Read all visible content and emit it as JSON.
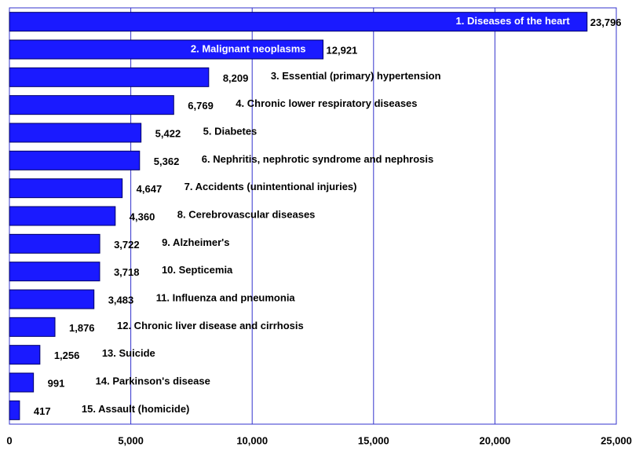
{
  "chart_data": {
    "type": "bar",
    "orientation": "horizontal",
    "color": "#1a1aff",
    "grid": true,
    "categories": [
      "1.  Diseases of the heart",
      "2.  Malignant neoplasms",
      "3.  Essential (primary) hypertension",
      "4.  Chronic lower respiratory diseases",
      "5.  Diabetes",
      "6.  Nephritis, nephrotic syndrome and nephrosis",
      "7.  Accidents (unintentional injuries)",
      "8.  Cerebrovascular diseases",
      "9.  Alzheimer's",
      "10.  Septicemia",
      "11.  Influenza and pneumonia",
      "12.  Chronic liver disease and cirrhosis",
      "13.  Suicide",
      "14.  Parkinson's disease",
      "15.  Assault (homicide)"
    ],
    "values": [
      23796,
      12921,
      8209,
      6769,
      5422,
      5362,
      4647,
      4360,
      3722,
      3718,
      3483,
      1876,
      1256,
      991,
      417
    ],
    "value_labels": [
      "23,796",
      "12,921",
      "8,209",
      "6,769",
      "5,422",
      "5,362",
      "4,647",
      "4,360",
      "3,722",
      "3,718",
      "3,483",
      "1,876",
      "1,256",
      "991",
      "417"
    ],
    "xlim": [
      0,
      25000
    ],
    "xticks": [
      0,
      {
        "value": 5000,
        "label": "5,000"
      },
      {
        "value": 10000,
        "label": "10,000"
      },
      {
        "value": 15000,
        "label": "15,000"
      },
      {
        "value": 20000,
        "label": "20,000"
      },
      {
        "value": 25000,
        "label": "25,000"
      }
    ]
  }
}
